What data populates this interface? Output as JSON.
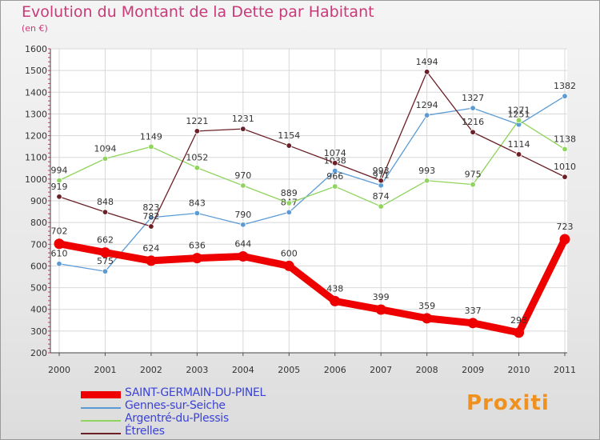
{
  "title": "Evolution du Montant de la Dette par Habitant",
  "subtitle": "(en €)",
  "brand": "Proxiti",
  "chart_data": {
    "type": "line",
    "title": "Evolution du Montant de la Dette par Habitant",
    "ylabel": "(en €)",
    "xlabel": "",
    "x": [
      "2000",
      "2001",
      "2002",
      "2003",
      "2004",
      "2005",
      "2006",
      "2007",
      "2008",
      "2009",
      "2010",
      "2011"
    ],
    "ylim": [
      200,
      1600
    ],
    "yticks": [
      200,
      300,
      400,
      500,
      600,
      700,
      800,
      900,
      1000,
      1100,
      1200,
      1300,
      1400,
      1500,
      1600
    ],
    "grid": true,
    "legend_position": "bottom-left",
    "series": [
      {
        "name": "SAINT-GERMAIN-DU-PINEL",
        "color": "#ee0000",
        "values": [
          702,
          662,
          624,
          636,
          644,
          600,
          438,
          399,
          359,
          337,
          293,
          723
        ]
      },
      {
        "name": "Gennes-sur-Seiche",
        "color": "#5b9bd5",
        "values": [
          610,
          575,
          823,
          843,
          790,
          847,
          1038,
          971,
          1294,
          1327,
          1251,
          1382
        ]
      },
      {
        "name": "Argentré-du-Plessis",
        "color": "#8fd45c",
        "values": [
          994,
          1094,
          1149,
          1052,
          970,
          889,
          966,
          874,
          993,
          975,
          1271,
          1138
        ]
      },
      {
        "name": "Étrelles",
        "color": "#6b1f26",
        "values": [
          919,
          848,
          782,
          1221,
          1231,
          1154,
          1074,
          993,
          1494,
          1216,
          1114,
          1010
        ]
      }
    ]
  }
}
